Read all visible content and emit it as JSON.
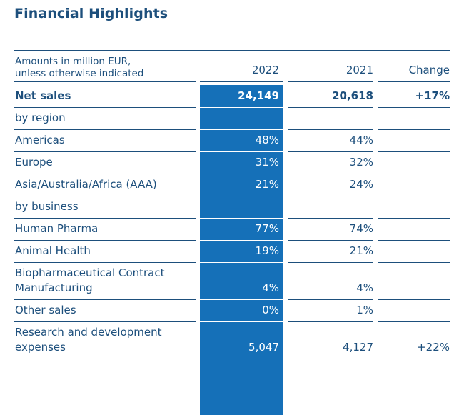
{
  "title": "Financial Highlights",
  "header": {
    "note_line1": "Amounts in million EUR,",
    "note_line2": "unless otherwise indicated",
    "col_2022": "2022",
    "col_2021": "2021",
    "col_change": "Change"
  },
  "rows": [
    {
      "label": "Net sales",
      "v2022": "24,149",
      "v2021": "20,618",
      "change": "+17%"
    },
    {
      "label": "by region",
      "v2022": "",
      "v2021": "",
      "change": ""
    },
    {
      "label": "Americas",
      "v2022": "48%",
      "v2021": "44%",
      "change": ""
    },
    {
      "label": "Europe",
      "v2022": "31%",
      "v2021": "32%",
      "change": ""
    },
    {
      "label": "Asia/Australia/Africa (AAA)",
      "v2022": "21%",
      "v2021": "24%",
      "change": ""
    },
    {
      "label": "by business",
      "v2022": "",
      "v2021": "",
      "change": ""
    },
    {
      "label": "Human Pharma",
      "v2022": "77%",
      "v2021": "74%",
      "change": ""
    },
    {
      "label": "Animal Health",
      "v2022": "19%",
      "v2021": "21%",
      "change": ""
    },
    {
      "label_line1": "Biopharmaceutical Contract",
      "label_line2": "Manufacturing",
      "v2022": "4%",
      "v2021": "4%",
      "change": ""
    },
    {
      "label": "Other sales",
      "v2022": "0%",
      "v2021": "1%",
      "change": ""
    },
    {
      "label_line1": "Research and development",
      "label_line2": "expenses",
      "v2022": "5,047",
      "v2021": "4,127",
      "change": "+22%"
    }
  ],
  "colors": {
    "text": "#1d4f7c",
    "highlight": "#1570b8"
  }
}
